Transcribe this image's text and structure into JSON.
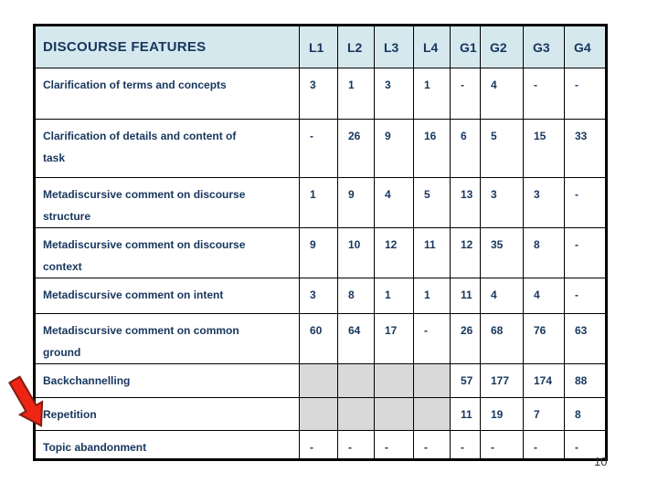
{
  "slide": {
    "page_number": "10"
  },
  "table": {
    "header": {
      "feature_label": "DISCOURSE FEATURES",
      "columns": [
        "L1",
        "L2",
        "L3",
        "L4",
        "G1",
        "G2",
        "G3",
        "G4"
      ]
    },
    "rows": [
      {
        "feature": "Clarification of terms and concepts",
        "values": [
          "3",
          "1",
          "3",
          "1",
          "-",
          "4",
          "-",
          "-"
        ],
        "shaded": []
      },
      {
        "feature": "Clarification of details and content of\ntask",
        "values": [
          "-",
          "26",
          "9",
          "16",
          "6",
          "5",
          "15",
          "33"
        ],
        "shaded": []
      },
      {
        "feature": "Metadiscursive comment on discourse\nstructure",
        "values": [
          "1",
          "9",
          "4",
          "5",
          "13",
          "3",
          "3",
          "-"
        ],
        "shaded": []
      },
      {
        "feature": "Metadiscursive comment on discourse\ncontext",
        "values": [
          "9",
          "10",
          "12",
          "11",
          "12",
          "35",
          "8",
          "-"
        ],
        "shaded": []
      },
      {
        "feature": "Metadiscursive comment on intent",
        "values": [
          "3",
          "8",
          "1",
          "1",
          "11",
          "4",
          "4",
          "-"
        ],
        "shaded": []
      },
      {
        "feature": "Metadiscursive comment on common\nground",
        "values": [
          "60",
          "64",
          "17",
          "-",
          "26",
          "68",
          "76",
          "63"
        ],
        "shaded": []
      },
      {
        "feature": "Backchannelling",
        "values": [
          "",
          "",
          "",
          "",
          "57",
          "177",
          "174",
          "88"
        ],
        "shaded": [
          0,
          1,
          2,
          3
        ]
      },
      {
        "feature": "Repetition",
        "values": [
          "",
          "",
          "",
          "",
          "11",
          "19",
          "7",
          "8"
        ],
        "shaded": [
          0,
          1,
          2,
          3
        ]
      },
      {
        "feature": "Topic abandonment",
        "values": [
          "-",
          "-",
          "-",
          "-",
          "-",
          "-",
          "-",
          "-"
        ],
        "shaded": []
      }
    ]
  },
  "icons": {
    "red_arrow": "arrow-pointing-down-right"
  },
  "colors": {
    "header_bg": "#d5e8ee",
    "table_text": "#17365d",
    "grid_line": "#000000",
    "shaded_cell": "#d9d9d9",
    "arrow_fill": "#ee2414",
    "arrow_outline": "#7f1d12",
    "page_number": "#3a3a3a"
  }
}
